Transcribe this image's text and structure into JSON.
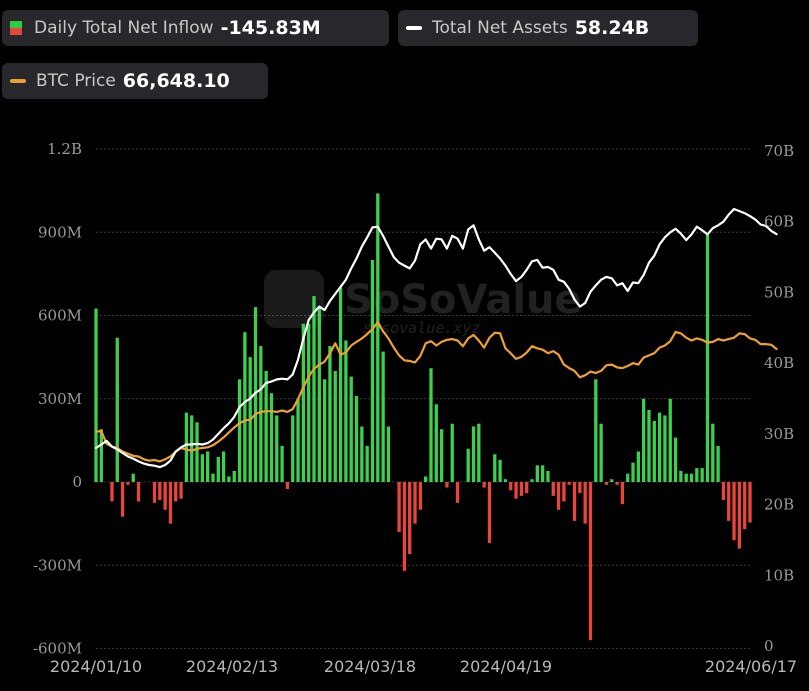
{
  "legend": {
    "inflow": {
      "label": "Daily Total Net Inflow",
      "value": "-145.83M",
      "icon": "updown-bars-icon"
    },
    "assets": {
      "label": "Total Net Assets",
      "value": "58.24B",
      "icon": "white-line-icon"
    },
    "btc": {
      "label": "BTC Price",
      "value": "66,648.10",
      "icon": "orange-line-icon"
    }
  },
  "watermark": {
    "brand": "SoSoValue",
    "url": "sosovalue.xyz"
  },
  "colors": {
    "positive_bar": "#3ecf4f",
    "negative_bar": "#e8453c",
    "assets_line": "#ffffff",
    "btc_line": "#f0a030",
    "grid": "#3a3a3a"
  },
  "chart_data": {
    "type": "bar",
    "x_tick_labels": [
      "2024/01/10",
      "2024/02/13",
      "2024/03/18",
      "2024/04/19",
      "2024/06/17"
    ],
    "left_axis": {
      "ticks": [
        "1.2B",
        "900M",
        "600M",
        "300M",
        "0",
        "-300M",
        "-600M"
      ],
      "values": [
        1200,
        900,
        600,
        300,
        0,
        -300,
        -600
      ],
      "unit": "M",
      "ylim": [
        -600,
        1200
      ]
    },
    "right_axis": {
      "ticks": [
        "70B",
        "60B",
        "50B",
        "40B",
        "30B",
        "20B",
        "10B",
        "0"
      ],
      "values": [
        70,
        60,
        50,
        40,
        30,
        20,
        10,
        0
      ],
      "unit": "B",
      "ylim": [
        0,
        70
      ]
    },
    "grid": true,
    "legend_position": "top",
    "series": [
      {
        "name": "Daily Total Net Inflow",
        "kind": "bar",
        "axis": "left",
        "values": [
          625,
          190,
          0,
          -70,
          520,
          -125,
          -10,
          30,
          -70,
          0,
          0,
          -75,
          -65,
          -100,
          -150,
          -70,
          -60,
          250,
          240,
          215,
          100,
          110,
          30,
          90,
          110,
          20,
          40,
          370,
          540,
          450,
          630,
          490,
          400,
          320,
          240,
          130,
          -25,
          240,
          300,
          570,
          570,
          670,
          630,
          370,
          490,
          400,
          700,
          510,
          380,
          310,
          200,
          130,
          800,
          1040,
          470,
          200,
          0,
          -180,
          -320,
          -260,
          -150,
          -100,
          20,
          410,
          280,
          190,
          -20,
          210,
          -75,
          0,
          120,
          200,
          210,
          -20,
          -220,
          100,
          80,
          10,
          -30,
          -60,
          -50,
          -40,
          10,
          60,
          60,
          40,
          -50,
          -100,
          -70,
          -10,
          -140,
          -40,
          -150,
          -570,
          370,
          210,
          -10,
          10,
          -10,
          -80,
          30,
          70,
          110,
          300,
          260,
          220,
          250,
          240,
          300,
          160,
          40,
          30,
          30,
          50,
          50,
          890,
          210,
          130,
          -65,
          -140,
          -210,
          -240,
          -170,
          -146
        ]
      },
      {
        "name": "Total Net Assets",
        "kind": "line",
        "axis": "right",
        "values": [
          28,
          28.5,
          29,
          28.2,
          27.8,
          27.3,
          26.8,
          26.5,
          26.1,
          25.8,
          25.6,
          25.5,
          25.3,
          25.6,
          26.2,
          27.5,
          28.1,
          28.5,
          28.5,
          28.6,
          28.5,
          28.7,
          29.2,
          30,
          30.8,
          31.5,
          32.4,
          33.8,
          34.5,
          35,
          35.8,
          36.3,
          37.2,
          37.4,
          37.7,
          37.8,
          37.7,
          38.4,
          40.5,
          43.5,
          46.1,
          47.2,
          48,
          47.5,
          48.8,
          49.8,
          50.8,
          51.8,
          53.4,
          54.8,
          56.5,
          57.8,
          59.2,
          59.3,
          58,
          56.5,
          55,
          54.2,
          53.8,
          53.4,
          54.5,
          56.8,
          57.5,
          56.2,
          57.6,
          57.5,
          56.2,
          58,
          57.6,
          56.2,
          58.9,
          59.5,
          57.5,
          55.9,
          56.4,
          55.6,
          54.8,
          53.8,
          52.6,
          51.6,
          52.2,
          53.2,
          54.4,
          54.6,
          53.5,
          53.6,
          53.2,
          51.8,
          51.5,
          50.5,
          49,
          48,
          48.5,
          50.1,
          51,
          51.8,
          52.2,
          52,
          51,
          51.3,
          50.2,
          51.4,
          51.3,
          52.5,
          54.2,
          55.2,
          56.8,
          57.8,
          58.5,
          59,
          58.3,
          57.4,
          58.2,
          59.3,
          58.8,
          58.2,
          59.1,
          59.5,
          60,
          61,
          61.8,
          61.5,
          61.2,
          60.8,
          60.3,
          59.6,
          59.4,
          58.7,
          58.24
        ]
      },
      {
        "name": "BTC Price",
        "kind": "line",
        "axis": "right",
        "values": [
          30.3,
          30.4,
          28.6,
          28.2,
          28,
          27.5,
          27.2,
          26.9,
          26.8,
          26.4,
          26.2,
          26.3,
          26.1,
          26.4,
          26.8,
          27.5,
          28,
          27.8,
          27.6,
          27.9,
          28,
          28.1,
          28.4,
          28.9,
          29.5,
          30.2,
          30.9,
          31.5,
          31.9,
          32,
          32.8,
          33.1,
          33.2,
          33.2,
          33.1,
          33.3,
          33.1,
          33.5,
          34.9,
          36.6,
          38.1,
          39.2,
          39.8,
          40.2,
          41.4,
          42.8,
          41.2,
          41.5,
          42.5,
          43,
          43.5,
          44.1,
          44.8,
          45.8,
          44.5,
          43.5,
          42.2,
          41.1,
          40.4,
          40.3,
          40.1,
          41,
          42.8,
          43.1,
          42.5,
          43,
          43.3,
          43.4,
          43.2,
          42.4,
          43.5,
          44,
          43.2,
          42.2,
          43.6,
          44.3,
          44.2,
          42.1,
          41.4,
          40.6,
          40.9,
          41.5,
          42.4,
          42.1,
          41.9,
          41.4,
          41.7,
          41.2,
          39.8,
          39.3,
          38.9,
          38,
          38.3,
          38.8,
          38.6,
          38.9,
          39.7,
          39.8,
          39.4,
          39.3,
          39.6,
          40,
          39.8,
          40.8,
          41.1,
          41.4,
          42.2,
          42.5,
          43.1,
          44.4,
          44.2,
          43.6,
          43.2,
          43.5,
          43.3,
          42.9,
          43,
          43.4,
          43.2,
          43.4,
          43.6,
          44.2,
          44.1,
          43.5,
          43.3,
          42.7,
          42.7,
          42.6,
          42
        ]
      }
    ]
  }
}
